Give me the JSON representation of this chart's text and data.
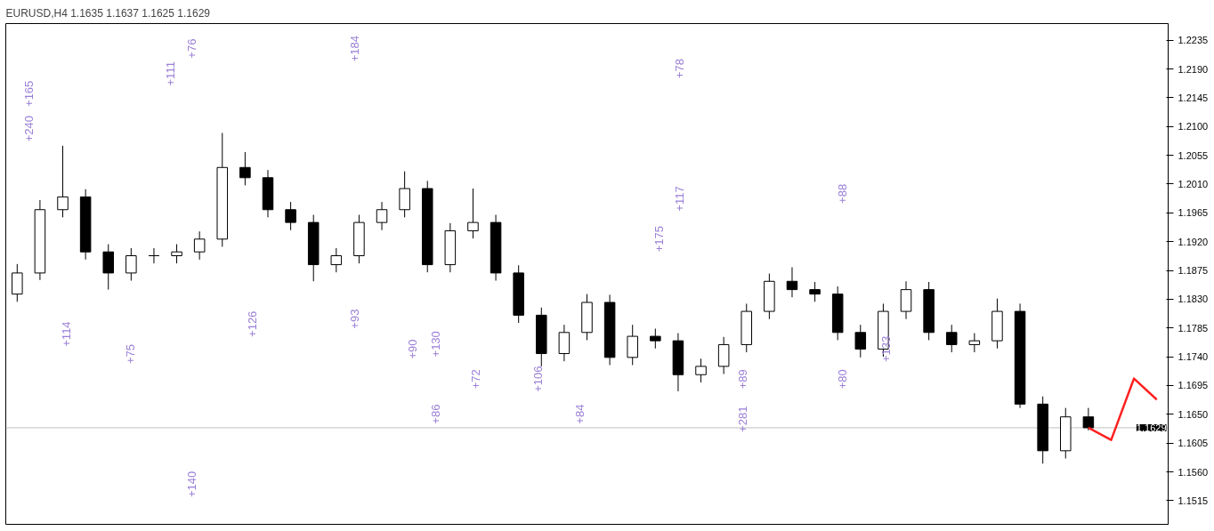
{
  "chart_data": {
    "type": "candlestick",
    "title": "EURUSD,H4 1.1635 1.1637 1.1625 1.1629",
    "categories": [
      null,
      null,
      null,
      null,
      null,
      null,
      null,
      null,
      null,
      null,
      null,
      null,
      null,
      null,
      null,
      null,
      null,
      null,
      null,
      null,
      null,
      null,
      null,
      null,
      null,
      null,
      null,
      null,
      null,
      null,
      null,
      null,
      null,
      null,
      null,
      null,
      null,
      null,
      null,
      null,
      null,
      null,
      null,
      null,
      null,
      null,
      null,
      null,
      null,
      null,
      null
    ],
    "ohlc": [
      [
        1.1838,
        1.1885,
        1.1826,
        1.1871
      ],
      [
        1.1871,
        1.1985,
        1.186,
        1.197
      ],
      [
        1.197,
        1.207,
        1.1958,
        1.199
      ],
      [
        1.199,
        1.2002,
        1.1892,
        1.1904
      ],
      [
        1.1904,
        1.1916,
        1.1845,
        1.1871
      ],
      [
        1.1871,
        1.191,
        1.1859,
        1.1898
      ],
      [
        1.1898,
        1.191,
        1.1886,
        1.1898
      ],
      [
        1.1898,
        1.1916,
        1.1886,
        1.1904
      ],
      [
        1.1904,
        1.1936,
        1.1892,
        1.1924
      ],
      [
        1.1924,
        1.209,
        1.1912,
        1.2036
      ],
      [
        1.2036,
        1.206,
        1.2008,
        1.202
      ],
      [
        1.202,
        1.2032,
        1.1958,
        1.197
      ],
      [
        1.197,
        1.1982,
        1.1938,
        1.195
      ],
      [
        1.195,
        1.1962,
        1.1858,
        1.1884
      ],
      [
        1.1884,
        1.191,
        1.1872,
        1.1898
      ],
      [
        1.1898,
        1.1962,
        1.1886,
        1.195
      ],
      [
        1.195,
        1.1982,
        1.1938,
        1.197
      ],
      [
        1.197,
        1.203,
        1.1958,
        1.2003
      ],
      [
        1.2003,
        1.2015,
        1.1872,
        1.1884
      ],
      [
        1.1884,
        1.1949,
        1.1872,
        1.1937
      ],
      [
        1.1937,
        1.2003,
        1.1925,
        1.195
      ],
      [
        1.195,
        1.1962,
        1.1859,
        1.1871
      ],
      [
        1.1871,
        1.1883,
        1.1793,
        1.1805
      ],
      [
        1.1805,
        1.1817,
        1.1725,
        1.1745
      ],
      [
        1.1745,
        1.179,
        1.1733,
        1.1778
      ],
      [
        1.1778,
        1.1838,
        1.1766,
        1.1825
      ],
      [
        1.1825,
        1.1837,
        1.1727,
        1.1739
      ],
      [
        1.1739,
        1.179,
        1.1727,
        1.1772
      ],
      [
        1.1772,
        1.1784,
        1.1753,
        1.1765
      ],
      [
        1.1765,
        1.1777,
        1.1686,
        1.1712
      ],
      [
        1.1712,
        1.1737,
        1.17,
        1.1725
      ],
      [
        1.1725,
        1.1771,
        1.1713,
        1.1759
      ],
      [
        1.1759,
        1.1823,
        1.1747,
        1.1811
      ],
      [
        1.1811,
        1.187,
        1.1799,
        1.1858
      ],
      [
        1.1858,
        1.188,
        1.1833,
        1.1845
      ],
      [
        1.1845,
        1.1857,
        1.1826,
        1.1838
      ],
      [
        1.1838,
        1.185,
        1.1766,
        1.1778
      ],
      [
        1.1778,
        1.179,
        1.1739,
        1.1752
      ],
      [
        1.1752,
        1.1823,
        1.174,
        1.1811
      ],
      [
        1.1811,
        1.1858,
        1.1799,
        1.1845
      ],
      [
        1.1845,
        1.1857,
        1.1766,
        1.1778
      ],
      [
        1.1778,
        1.179,
        1.1747,
        1.1759
      ],
      [
        1.1759,
        1.1777,
        1.1747,
        1.1765
      ],
      [
        1.1765,
        1.1831,
        1.1753,
        1.1811
      ],
      [
        1.1811,
        1.1823,
        1.166,
        1.1666
      ],
      [
        1.1666,
        1.1678,
        1.1573,
        1.1593
      ],
      [
        1.1593,
        1.166,
        1.1581,
        1.1646
      ],
      [
        1.1646,
        1.166,
        1.1625,
        1.1629
      ],
      null,
      null,
      null
    ],
    "series": [
      {
        "type": "line",
        "color": "#ff2020",
        "values": [
          null,
          null,
          null,
          null,
          null,
          null,
          null,
          null,
          null,
          null,
          null,
          null,
          null,
          null,
          null,
          null,
          null,
          null,
          null,
          null,
          null,
          null,
          null,
          null,
          null,
          null,
          null,
          null,
          null,
          null,
          null,
          null,
          null,
          null,
          null,
          null,
          null,
          null,
          null,
          null,
          null,
          null,
          null,
          null,
          null,
          null,
          null,
          1.1629,
          1.161,
          1.1706,
          1.1673
        ]
      }
    ],
    "ylim": [
      1.1478,
      1.2261
    ],
    "yticks": [
      {
        "value": 1.1515,
        "label": "1.1515"
      },
      {
        "value": 1.156,
        "label": "1.1560"
      },
      {
        "value": 1.1605,
        "label": "1.1605"
      },
      {
        "value": 1.165,
        "label": "1.1650"
      },
      {
        "value": 1.1695,
        "label": "1.1695"
      },
      {
        "value": 1.174,
        "label": "1.1740"
      },
      {
        "value": 1.1785,
        "label": "1.1785"
      },
      {
        "value": 1.183,
        "label": "1.1830"
      },
      {
        "value": 1.1875,
        "label": "1.1875"
      },
      {
        "value": 1.192,
        "label": "1.1920"
      },
      {
        "value": 1.1965,
        "label": "1.1965"
      },
      {
        "value": 1.201,
        "label": "1.2010"
      },
      {
        "value": 1.2055,
        "label": "1.2055"
      },
      {
        "value": 1.21,
        "label": "1.2100"
      },
      {
        "value": 1.2145,
        "label": "1.2145"
      },
      {
        "value": 1.219,
        "label": "1.2190"
      },
      {
        "value": 1.2235,
        "label": "1.2235"
      }
    ],
    "ref_lines": [
      {
        "axis": "y",
        "value": 1.1629,
        "label": "1.1629",
        "color": "#c0c0c0",
        "line_style": "solid"
      }
    ],
    "annotations": [
      "+240",
      "+165",
      "+76",
      "+111",
      "+184",
      "+78",
      "+117",
      "+88",
      "+175",
      "+114",
      "+75",
      "+140",
      "+126",
      "+93",
      "+86",
      "+84",
      "+281",
      "+72",
      "+90",
      "+130",
      "+106",
      "+89",
      "+133",
      "+80"
    ]
  }
}
